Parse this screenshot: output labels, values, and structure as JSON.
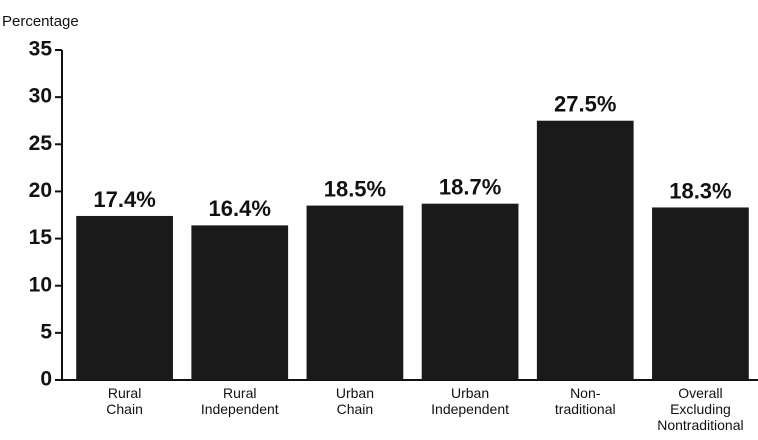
{
  "chart_data": {
    "type": "bar",
    "y_axis_label": "Percentage",
    "categories": [
      "Rural\nChain",
      "Rural\nIndependent",
      "Urban\nChain",
      "Urban\nIndependent",
      "Non-\ntraditional",
      "Overall\nExcluding\nNontraditional"
    ],
    "values": [
      17.4,
      16.4,
      18.5,
      18.7,
      27.5,
      18.3
    ],
    "value_labels": [
      "17.4%",
      "16.4%",
      "18.5%",
      "18.7%",
      "27.5%",
      "18.3%"
    ],
    "color": "#1a1a1a",
    "ylim": [
      0,
      35
    ],
    "yticks": [
      0,
      5,
      10,
      15,
      20,
      25,
      30,
      35
    ],
    "grid": false
  }
}
